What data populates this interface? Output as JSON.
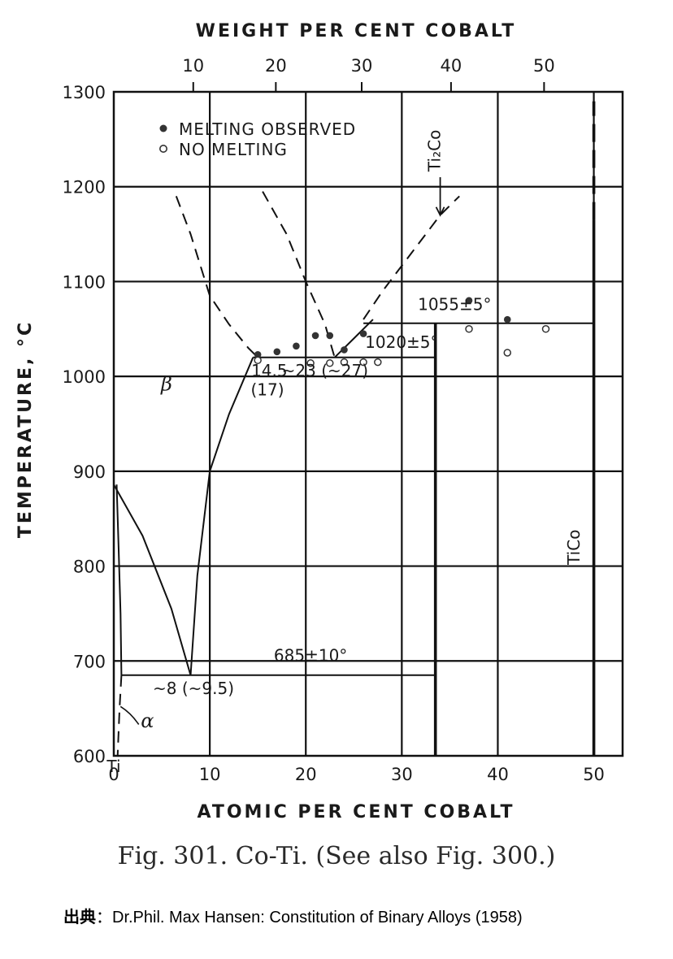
{
  "chart_data": {
    "type": "phase-diagram",
    "xlabel": "ATOMIC PER CENT COBALT",
    "x2label": "WEIGHT PER CENT COBALT",
    "ylabel": "TEMPERATURE, °C",
    "xlim": [
      0,
      53
    ],
    "ylim": [
      600,
      1300
    ],
    "x_ticks": [
      0,
      10,
      20,
      30,
      40,
      50
    ],
    "x_ticks_extra": "Ti",
    "x2_ticks": [
      10,
      20,
      30,
      40,
      50
    ],
    "y_ticks": [
      600,
      700,
      800,
      900,
      1000,
      1100,
      1200,
      1300
    ],
    "grid": true,
    "legend": {
      "position": "top-left",
      "entries": [
        {
          "marker": "filled-circle",
          "label": "MELTING OBSERVED"
        },
        {
          "marker": "open-circle",
          "label": "NO MELTING"
        }
      ]
    },
    "series": [
      {
        "name": "MELTING OBSERVED",
        "marker": "filled",
        "points": [
          [
            15,
            1023
          ],
          [
            17,
            1026
          ],
          [
            19,
            1032
          ],
          [
            21,
            1043
          ],
          [
            22.5,
            1043
          ],
          [
            24,
            1028
          ],
          [
            26,
            1045
          ],
          [
            37,
            1080
          ],
          [
            41,
            1060
          ]
        ]
      },
      {
        "name": "NO MELTING",
        "marker": "open",
        "points": [
          [
            15,
            1017
          ],
          [
            20.5,
            1014
          ],
          [
            22.5,
            1014
          ],
          [
            24,
            1015
          ],
          [
            26,
            1015
          ],
          [
            27.5,
            1015
          ],
          [
            37,
            1050
          ],
          [
            41,
            1025
          ],
          [
            45,
            1050
          ]
        ]
      }
    ],
    "lines": [
      {
        "style": "dashed",
        "points": [
          [
            6.5,
            1190
          ],
          [
            8,
            1150
          ],
          [
            10,
            1085
          ],
          [
            12,
            1055
          ],
          [
            14,
            1030
          ],
          [
            15,
            1020
          ]
        ]
      },
      {
        "style": "dashed",
        "points": [
          [
            15.5,
            1195
          ],
          [
            18,
            1150
          ],
          [
            20,
            1100
          ],
          [
            22,
            1055
          ],
          [
            23,
            1020
          ]
        ]
      },
      {
        "style": "dashed",
        "points": [
          [
            26,
            1060
          ],
          [
            28,
            1090
          ],
          [
            31,
            1130
          ],
          [
            34,
            1170
          ],
          [
            36,
            1190
          ]
        ]
      },
      {
        "style": "solid",
        "points": [
          [
            23,
            1020
          ],
          [
            25,
            1040
          ],
          [
            27,
            1060
          ]
        ]
      },
      {
        "style": "solid",
        "points": [
          [
            0,
            886
          ],
          [
            3,
            832
          ],
          [
            6,
            755
          ],
          [
            8,
            685
          ]
        ]
      },
      {
        "style": "solid",
        "points": [
          [
            8,
            685
          ],
          [
            8.7,
            790
          ],
          [
            10,
            900
          ],
          [
            12,
            960
          ],
          [
            14.5,
            1020
          ]
        ]
      },
      {
        "style": "solid",
        "points": [
          [
            0.8,
            685
          ],
          [
            0.7,
            750
          ],
          [
            0.5,
            820
          ],
          [
            0.3,
            886
          ]
        ]
      },
      {
        "style": "dashed",
        "points": [
          [
            0.8,
            685
          ],
          [
            0.6,
            650
          ],
          [
            0.4,
            600
          ]
        ]
      },
      {
        "style": "solid",
        "points": [
          [
            14.5,
            1020
          ],
          [
            33.5,
            1020
          ]
        ]
      },
      {
        "style": "solid",
        "points": [
          [
            26,
            1056
          ],
          [
            50,
            1056
          ]
        ]
      },
      {
        "style": "solid",
        "points": [
          [
            0.8,
            685
          ],
          [
            33.5,
            685
          ]
        ]
      },
      {
        "style": "solid-thick",
        "points": [
          [
            33.5,
            600
          ],
          [
            33.5,
            1056
          ]
        ]
      },
      {
        "style": "solid-thick",
        "points": [
          [
            50,
            600
          ],
          [
            50,
            1165
          ]
        ]
      },
      {
        "style": "dashed-thick",
        "points": [
          [
            50,
            1165
          ],
          [
            50,
            1290
          ]
        ]
      }
    ],
    "annotations": [
      {
        "text": "1055±5°",
        "x": 35.5,
        "y": 1070
      },
      {
        "text": "1020±5°",
        "x": 30.0,
        "y": 1030
      },
      {
        "text": "685±10°",
        "x": 20.5,
        "y": 700
      },
      {
        "text": "14.5",
        "x": 16.2,
        "y": 1000
      },
      {
        "text": "(17)",
        "x": 16.0,
        "y": 980
      },
      {
        "text": "~23 (~27)",
        "x": 22.0,
        "y": 1000
      },
      {
        "text": "~8 (~9.5)",
        "x": 8.3,
        "y": 665
      },
      {
        "text": "β",
        "x": 5.5,
        "y": 985
      },
      {
        "text": "α",
        "x": 3.5,
        "y": 630
      },
      {
        "text": "Ti",
        "x": 0,
        "y": 583
      },
      {
        "text": "Ti₂Co",
        "x": 34.0,
        "y": 1238,
        "vertical": true
      },
      {
        "text": "TiCo",
        "x": 48.5,
        "y": 820,
        "vertical": true
      }
    ]
  },
  "caption": "Fig. 301. Co-Ti.    (See also Fig. 300.)",
  "source": {
    "label": "出典",
    "sep": "：",
    "text": "Dr.Phil. Max Hansen: Constitution of Binary Alloys (1958)"
  }
}
